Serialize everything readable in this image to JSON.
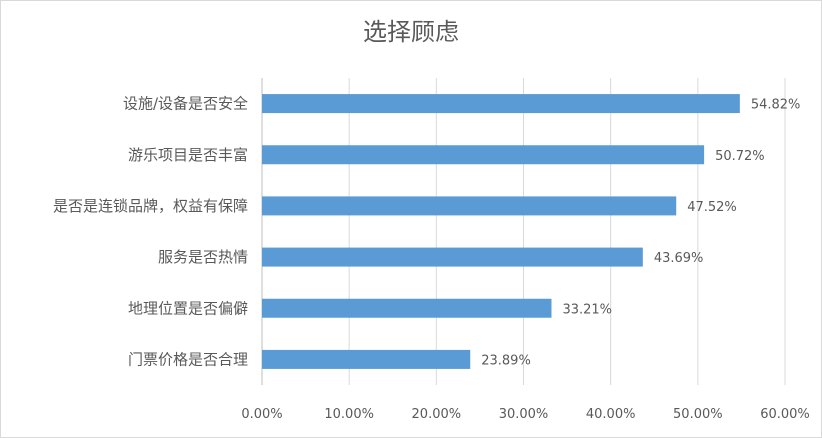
{
  "chart_data": {
    "type": "bar",
    "orientation": "horizontal",
    "title": "选择顾虑",
    "categories": [
      "设施/设备是否安全",
      "游乐项目是否丰富",
      "是否是连锁品牌，权益有保障",
      "服务是否热情",
      "地理位置是否偏僻",
      "门票价格是否合理"
    ],
    "values": [
      54.82,
      50.72,
      47.52,
      43.69,
      33.21,
      23.89
    ],
    "value_labels": [
      "54.82%",
      "50.72%",
      "47.52%",
      "43.69%",
      "33.21%",
      "23.89%"
    ],
    "xlim": [
      0,
      60
    ],
    "x_ticks": [
      0,
      10,
      20,
      30,
      40,
      50,
      60
    ],
    "x_tick_labels": [
      "0.00%",
      "10.00%",
      "20.00%",
      "30.00%",
      "40.00%",
      "50.00%",
      "60.00%"
    ],
    "grid": "vertical",
    "legend": "none",
    "colors": {
      "bar": "#5B9BD5",
      "grid": "#d9d9d9",
      "text": "#595959",
      "axis": "#bfbfbf"
    }
  }
}
